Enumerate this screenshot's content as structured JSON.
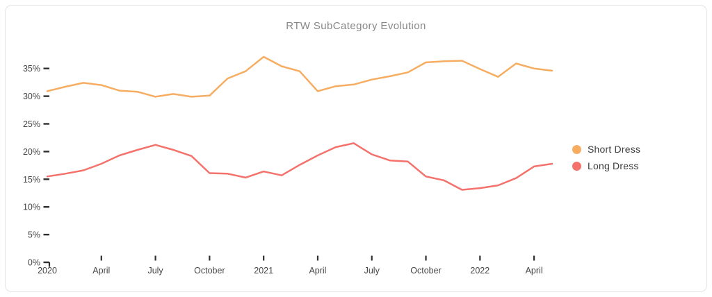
{
  "card": {
    "title": "RTW SubCategory Evolution"
  },
  "legend": {
    "items": [
      {
        "label": "Short Dress",
        "color": "#F6AD61"
      },
      {
        "label": "Long Dress",
        "color": "#F4726B"
      }
    ]
  },
  "chart_data": {
    "type": "line",
    "title": "RTW SubCategory Evolution",
    "xlabel": "",
    "ylabel": "",
    "grid": false,
    "legend_position": "right",
    "ylim": [
      0,
      40
    ],
    "y_ticks": [
      0,
      5,
      10,
      15,
      20,
      25,
      30,
      35
    ],
    "y_tick_labels": [
      "0%",
      "5%",
      "10%",
      "15%",
      "20%",
      "25%",
      "30%",
      "35%"
    ],
    "x": [
      "Jan 2020",
      "Feb 2020",
      "Mar 2020",
      "Apr 2020",
      "May 2020",
      "Jun 2020",
      "Jul 2020",
      "Aug 2020",
      "Sep 2020",
      "Oct 2020",
      "Nov 2020",
      "Dec 2020",
      "Jan 2021",
      "Feb 2021",
      "Mar 2021",
      "Apr 2021",
      "May 2021",
      "Jun 2021",
      "Jul 2021",
      "Aug 2021",
      "Sep 2021",
      "Oct 2021",
      "Nov 2021",
      "Dec 2021",
      "Jan 2022",
      "Feb 2022",
      "Mar 2022",
      "Apr 2022",
      "May 2022"
    ],
    "x_tick_indices": [
      0,
      3,
      6,
      9,
      12,
      15,
      18,
      21,
      24,
      27
    ],
    "x_tick_labels": [
      "2020",
      "April",
      "July",
      "October",
      "2021",
      "April",
      "July",
      "October",
      "2022",
      "April"
    ],
    "series": [
      {
        "name": "Short Dress",
        "color": "#F6AD61",
        "values": [
          30.9,
          31.7,
          32.4,
          32.0,
          31.0,
          30.8,
          29.9,
          30.4,
          29.9,
          30.1,
          33.2,
          34.5,
          37.1,
          35.4,
          34.5,
          30.9,
          31.8,
          32.1,
          33.0,
          33.6,
          34.3,
          36.1,
          36.3,
          36.4,
          34.9,
          33.5,
          35.9,
          35.0,
          34.6
        ]
      },
      {
        "name": "Long Dress",
        "color": "#F4726B",
        "values": [
          15.5,
          16.0,
          16.6,
          17.8,
          19.3,
          20.3,
          21.2,
          20.3,
          19.2,
          16.1,
          16.0,
          15.3,
          16.4,
          15.7,
          17.6,
          19.3,
          20.8,
          21.5,
          19.5,
          18.4,
          18.2,
          15.5,
          14.8,
          13.1,
          13.4,
          13.9,
          15.2,
          17.3,
          17.8
        ]
      }
    ]
  },
  "colors": {
    "axis_tick": "#2f2f2f",
    "axis_label": "#454545",
    "title": "#878787",
    "card_border": "#e4e4e4"
  }
}
